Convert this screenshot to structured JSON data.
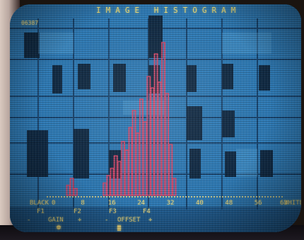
{
  "screen": {
    "title": "IMAGE HISTOGRAM",
    "counter": "06387"
  },
  "axis": {
    "black_label": "BLACK",
    "white_label": "WHITE",
    "ticks": [
      "0",
      "8",
      "16",
      "24",
      "32",
      "40",
      "48",
      "56",
      "63"
    ]
  },
  "function_keys": [
    "F1",
    "F2",
    "F3",
    "F4"
  ],
  "controls": {
    "gain_label": "GAIN",
    "offset_label": "OFFSET",
    "gain_minus": "-",
    "gain_plus": "+",
    "offset_minus": "-",
    "offset_plus": "+"
  },
  "chart_data": {
    "type": "bar",
    "title": "IMAGE HISTOGRAM",
    "x": [
      4,
      5,
      6,
      14,
      15,
      16,
      17,
      18,
      19,
      20,
      21,
      22,
      23,
      24,
      25,
      26,
      27,
      28,
      29,
      30,
      31,
      32,
      33
    ],
    "values": [
      18,
      30,
      12,
      22,
      35,
      48,
      70,
      60,
      95,
      80,
      120,
      150,
      110,
      170,
      130,
      210,
      190,
      250,
      200,
      270,
      180,
      90,
      30
    ],
    "xlim": [
      0,
      63
    ],
    "ylim": [
      0,
      300
    ],
    "colors": {
      "bars": "#d84a6c",
      "axis": "#f2df84",
      "background": "#2f7bb6"
    }
  }
}
